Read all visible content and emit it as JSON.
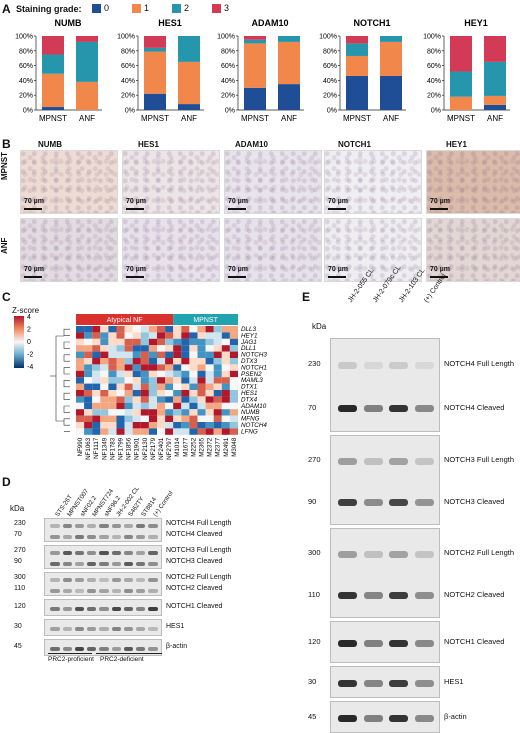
{
  "panels": {
    "a": "A",
    "b": "B",
    "c": "C",
    "d": "D",
    "e": "E"
  },
  "panel_a": {
    "legend_title": "Staining grade:",
    "grades": [
      {
        "label": "0",
        "color": "#1f4e96"
      },
      {
        "label": "1",
        "color": "#f2874b"
      },
      {
        "label": "2",
        "color": "#2696ad"
      },
      {
        "label": "3",
        "color": "#d23a55"
      }
    ]
  },
  "chart_data": [
    {
      "type": "bar",
      "stacked": true,
      "title": "NUMB",
      "categories": [
        "MPNST",
        "ANF"
      ],
      "ylim": [
        0,
        100
      ],
      "yticks": [
        "0%",
        "20%",
        "40%",
        "60%",
        "80%",
        "100%"
      ],
      "series": [
        {
          "name": "0",
          "values": [
            4,
            0
          ]
        },
        {
          "name": "1",
          "values": [
            45,
            38
          ]
        },
        {
          "name": "2",
          "values": [
            26,
            54
          ]
        },
        {
          "name": "3",
          "values": [
            25,
            8
          ]
        }
      ]
    },
    {
      "type": "bar",
      "stacked": true,
      "title": "HES1",
      "categories": [
        "MPNST",
        "ANF"
      ],
      "ylim": [
        0,
        100
      ],
      "yticks": [
        "0%",
        "20%",
        "40%",
        "60%",
        "80%",
        "100%"
      ],
      "series": [
        {
          "name": "0",
          "values": [
            22,
            8
          ]
        },
        {
          "name": "1",
          "values": [
            57,
            57
          ]
        },
        {
          "name": "2",
          "values": [
            5,
            35
          ]
        },
        {
          "name": "3",
          "values": [
            16,
            0
          ]
        }
      ]
    },
    {
      "type": "bar",
      "stacked": true,
      "title": "ADAM10",
      "categories": [
        "MPNST",
        "ANF"
      ],
      "ylim": [
        0,
        100
      ],
      "yticks": [
        "0%",
        "20%",
        "40%",
        "60%",
        "80%",
        "100%"
      ],
      "series": [
        {
          "name": "0",
          "values": [
            30,
            35
          ]
        },
        {
          "name": "1",
          "values": [
            60,
            57
          ]
        },
        {
          "name": "2",
          "values": [
            5,
            8
          ]
        },
        {
          "name": "3",
          "values": [
            5,
            0
          ]
        }
      ]
    },
    {
      "type": "bar",
      "stacked": true,
      "title": "NOTCH1",
      "categories": [
        "MPNST",
        "ANF"
      ],
      "ylim": [
        0,
        100
      ],
      "yticks": [
        "0%",
        "20%",
        "40%",
        "60%",
        "80%",
        "100%"
      ],
      "series": [
        {
          "name": "0",
          "values": [
            46,
            46
          ]
        },
        {
          "name": "1",
          "values": [
            27,
            46
          ]
        },
        {
          "name": "2",
          "values": [
            17,
            8
          ]
        },
        {
          "name": "3",
          "values": [
            10,
            0
          ]
        }
      ]
    },
    {
      "type": "bar",
      "stacked": true,
      "title": "HEY1",
      "categories": [
        "MPNST",
        "ANF"
      ],
      "ylim": [
        0,
        100
      ],
      "yticks": [
        "0%",
        "20%",
        "40%",
        "60%",
        "80%",
        "100%"
      ],
      "series": [
        {
          "name": "0",
          "values": [
            0,
            7
          ]
        },
        {
          "name": "1",
          "values": [
            18,
            12
          ]
        },
        {
          "name": "2",
          "values": [
            34,
            46
          ]
        },
        {
          "name": "3",
          "values": [
            48,
            35
          ]
        }
      ]
    }
  ],
  "panel_b": {
    "columns": [
      "NUMB",
      "HES1",
      "ADAM10",
      "NOTCH1",
      "HEY1"
    ],
    "rows": [
      "MPNST",
      "ANF"
    ],
    "scale_label": "70 µm",
    "tints": [
      [
        "#eddcd4",
        "#ece4e6",
        "#e8e4ec",
        "#efeff3",
        "#dbbcaa"
      ],
      [
        "#e3dbe2",
        "#e6e1eb",
        "#e6e2eb",
        "#eeeef2",
        "#e3d7d5"
      ]
    ]
  },
  "panel_c": {
    "colorbar_title": "Z-score",
    "colorbar_ticks": [
      "4",
      "2",
      "0",
      "-2",
      "-4"
    ],
    "groups": [
      {
        "label": "Atypical NF",
        "color": "#d9322e"
      },
      {
        "label": "MPNST",
        "color": "#22a3b0"
      }
    ],
    "genes": [
      "DLL3",
      "HEY1",
      "JAG1",
      "DLL1",
      "NOTCH3",
      "DTX3",
      "NOTCH1",
      "PSEN2",
      "MAML3",
      "DTX1",
      "HES1",
      "DTX4",
      "ADAM10",
      "NUMB",
      "MFNG",
      "NOTCH4",
      "LFNG"
    ],
    "samples": [
      "NF990",
      "NF1063",
      "NF1117",
      "NF1349",
      "NF1783",
      "NF1799",
      "NF1856",
      "NF1901",
      "NF2130",
      "NF2179",
      "NF2401",
      "NF2797",
      "M1014",
      "M1677",
      "M2252",
      "M2365",
      "M2372",
      "M2377",
      "M2491",
      "M3048"
    ]
  },
  "panel_d": {
    "kda_title": "kDa",
    "lanes": [
      "STS-26T",
      "MPNST007",
      "sNF02.2",
      "MPNST724",
      "sNF96.2",
      "JH-2-002 CL",
      "S462TY",
      "ST8814",
      "(+) Control"
    ],
    "blots": [
      {
        "kda": [
          "230",
          "70"
        ],
        "labels": [
          "NOTCH4 Full Length",
          "NOTCH4 Cleaved"
        ]
      },
      {
        "kda": [
          "270",
          "90"
        ],
        "labels": [
          "NOTCH3 Full Length",
          "NOTCH3 Cleaved"
        ]
      },
      {
        "kda": [
          "300",
          "110"
        ],
        "labels": [
          "NOTCH2 Full Length",
          "NOTCH2 Cleaved"
        ]
      },
      {
        "kda": [
          "120"
        ],
        "labels": [
          "NOTCH1 Cleaved"
        ]
      },
      {
        "kda": [
          "30"
        ],
        "labels": [
          "HES1"
        ]
      },
      {
        "kda": [
          "45"
        ],
        "labels": [
          "β-actin"
        ]
      }
    ],
    "groups": [
      "PRC2-proficient",
      "PRC2-deficient"
    ]
  },
  "panel_e": {
    "kda_title": "kDa",
    "lanes": [
      "JH-2-055 CL",
      "JH-2-079c CL",
      "JH-2-103 CL",
      "(+) Control"
    ],
    "blots": [
      {
        "kda": [
          "230",
          "70"
        ],
        "labels": [
          "NOTCH4 Full Length",
          "NOTCH4 Cleaved"
        ]
      },
      {
        "kda": [
          "270",
          "90"
        ],
        "labels": [
          "NOTCH3 Full Length",
          "NOTCH3 Cleaved"
        ]
      },
      {
        "kda": [
          "300",
          "110"
        ],
        "labels": [
          "NOTCH2 Full Length",
          "NOTCH2 Cleaved"
        ]
      },
      {
        "kda": [
          "120"
        ],
        "labels": [
          "NOTCH1 Cleaved"
        ]
      },
      {
        "kda": [
          "30"
        ],
        "labels": [
          "HES1"
        ]
      },
      {
        "kda": [
          "45"
        ],
        "labels": [
          "β-actin"
        ]
      }
    ]
  }
}
